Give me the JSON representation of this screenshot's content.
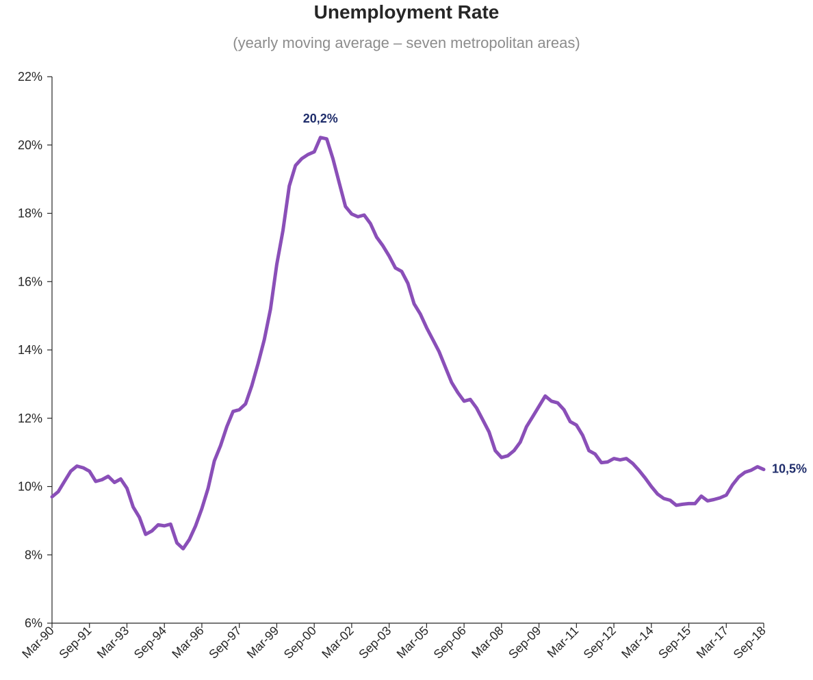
{
  "chart_data": {
    "type": "line",
    "title": "Unemployment Rate",
    "subtitle": "(yearly moving average – seven metropolitan areas)",
    "xlabel": "",
    "ylabel": "",
    "x_start": "Mar-90",
    "x_end": "Sep-18",
    "x_frequency": "quarterly",
    "ylim": [
      6,
      22
    ],
    "y_ticks": [
      "6%",
      "8%",
      "10%",
      "12%",
      "14%",
      "16%",
      "18%",
      "20%",
      "22%"
    ],
    "x_ticks": [
      "Mar-90",
      "Sep-91",
      "Mar-93",
      "Sep-94",
      "Mar-96",
      "Sep-97",
      "Mar-99",
      "Sep-00",
      "Mar-02",
      "Sep-03",
      "Mar-05",
      "Sep-06",
      "Mar-08",
      "Sep-09",
      "Mar-11",
      "Sep-12",
      "Mar-14",
      "Sep-15",
      "Mar-17",
      "Sep-18"
    ],
    "grid": false,
    "legend": "none",
    "line_color": "#8a4fb8",
    "annotation_color": "#1f2d6b",
    "series": [
      {
        "values": [
          9.7,
          9.85,
          10.15,
          10.45,
          10.6,
          10.55,
          10.45,
          10.15,
          10.2,
          10.3,
          10.12,
          10.22,
          9.95,
          9.4,
          9.1,
          8.6,
          8.7,
          8.88,
          8.85,
          8.9,
          8.35,
          8.18,
          8.45,
          8.85,
          9.35,
          9.95,
          10.75,
          11.2,
          11.75,
          12.2,
          12.25,
          12.42,
          12.95,
          13.6,
          14.3,
          15.2,
          16.5,
          17.5,
          18.8,
          19.4,
          19.6,
          19.72,
          19.8,
          20.22,
          20.18,
          19.6,
          18.9,
          18.2,
          17.98,
          17.9,
          17.95,
          17.7,
          17.3,
          17.05,
          16.75,
          16.4,
          16.3,
          15.95,
          15.35,
          15.05,
          14.65,
          14.3,
          13.95,
          13.5,
          13.05,
          12.75,
          12.5,
          12.55,
          12.3,
          11.95,
          11.6,
          11.05,
          10.85,
          10.9,
          11.05,
          11.3,
          11.75,
          12.05,
          12.35,
          12.65,
          12.5,
          12.45,
          12.25,
          11.9,
          11.8,
          11.5,
          11.05,
          10.95,
          10.7,
          10.72,
          10.82,
          10.78,
          10.82,
          10.68,
          10.48,
          10.25,
          10.0,
          9.78,
          9.65,
          9.6,
          9.45,
          9.48,
          9.5,
          9.5,
          9.72,
          9.58,
          9.62,
          9.67,
          9.75,
          10.05,
          10.28,
          10.42,
          10.48,
          10.58,
          10.5
        ]
      }
    ],
    "annotations": [
      {
        "label": "20,2%",
        "x": "Dec-00",
        "y": 20.2
      },
      {
        "label": "10,5%",
        "x": "Sep-18",
        "y": 10.5
      }
    ]
  }
}
